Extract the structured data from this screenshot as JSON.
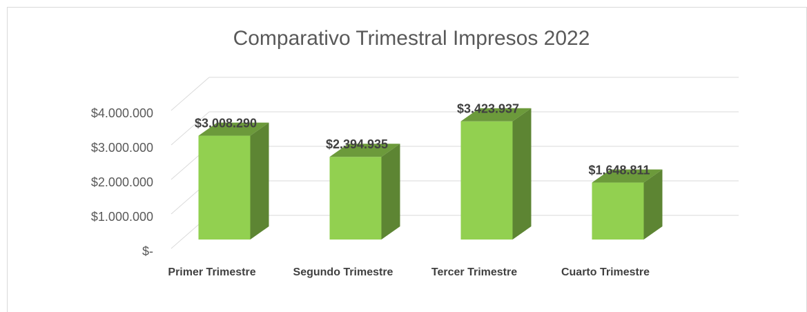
{
  "chart_data": {
    "type": "bar3d",
    "title": "Comparativo Trimestral Impresos 2022",
    "categories": [
      "Primer Trimestre",
      "Segundo Trimestre",
      "Tercer Trimestre",
      "Cuarto Trimestre"
    ],
    "values": [
      3008290,
      2394935,
      3423937,
      1648811
    ],
    "value_labels": [
      "$3.008.290",
      "$2.394.935",
      "$3.423.937",
      "$1.648.811"
    ],
    "color": "#92d050",
    "ylim": [
      0,
      4000000
    ],
    "yticks": [
      {
        "value": 0,
        "label": "$-"
      },
      {
        "value": 1000000,
        "label": "$1.000.000"
      },
      {
        "value": 2000000,
        "label": "$2.000.000"
      },
      {
        "value": 3000000,
        "label": "$3.000.000"
      },
      {
        "value": 4000000,
        "label": "$4.000.000"
      }
    ],
    "grid": true
  }
}
